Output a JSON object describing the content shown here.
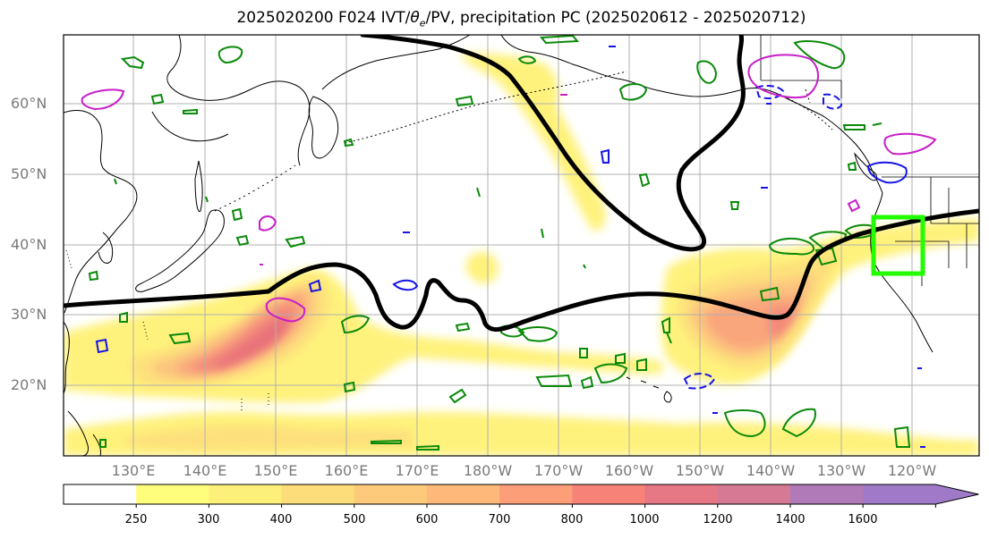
{
  "title": "2025020200 F024 IVT/θe/PV, precipitation PC (2025020612 - 2025020712)",
  "title_parts": {
    "pre": "2025020200 F024 IVT/",
    "theta": "θ",
    "sub": "e",
    "post": "/PV, precipitation PC (2025020612 - 2025020712)"
  },
  "lat_labels": [
    "60°N",
    "50°N",
    "40°N",
    "30°N",
    "20°N"
  ],
  "lon_labels": [
    "130°E",
    "140°E",
    "150°E",
    "160°E",
    "170°E",
    "180°W",
    "170°W",
    "160°W",
    "150°W",
    "140°W",
    "130°W",
    "120°W"
  ],
  "colorbar": {
    "labels": [
      "250",
      "300",
      "400",
      "500",
      "600",
      "700",
      "800",
      "1000",
      "1200",
      "1400",
      "1600"
    ],
    "colors": [
      "#ffffff",
      "#fefe7c",
      "#fdf07a",
      "#fddc7a",
      "#fdc97a",
      "#fdb87a",
      "#fc9e78",
      "#f68278",
      "#e67784",
      "#d67994",
      "#b07ab8",
      "#a07ac8"
    ]
  },
  "colors": {
    "ivt_fill_levels": [
      "#fff27c",
      "#fde07c",
      "#fcc47e",
      "#f9a67c",
      "#f3897a",
      "#e8717a",
      "#d86e8a"
    ],
    "pv_contour": "#000000",
    "precip_green": "#0a8a0a",
    "precip_blue": "#1414e6",
    "precip_magenta": "#c81ec8",
    "highlight_box": "#22ff00",
    "gridline": "#b0b0b0"
  }
}
